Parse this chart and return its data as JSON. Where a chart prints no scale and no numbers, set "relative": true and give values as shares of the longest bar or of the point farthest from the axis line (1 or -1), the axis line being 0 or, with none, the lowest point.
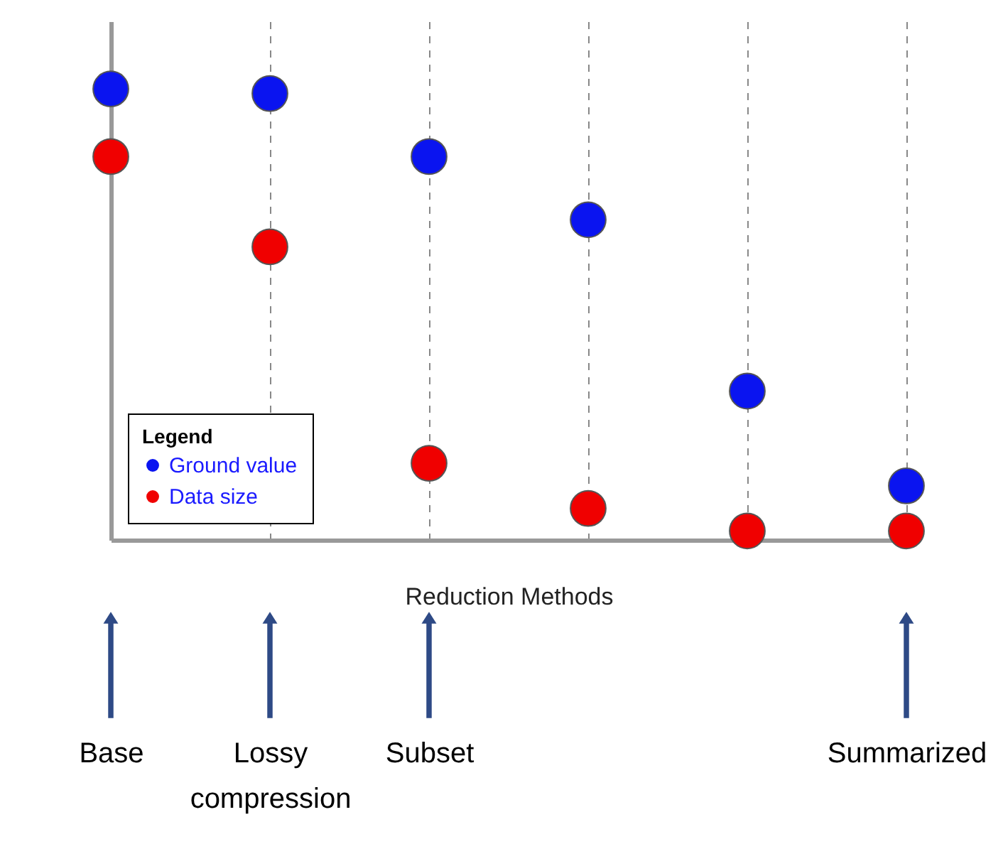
{
  "chart_data": {
    "type": "scatter",
    "relative": true,
    "xlabel": "Reduction Methods",
    "legend_title": "Legend",
    "legend": "bottom left",
    "grid": "x",
    "marker": "circle",
    "categories": [
      "Base",
      "Lossy compression",
      "Subset",
      null,
      null,
      "Summarized"
    ],
    "series": [
      {
        "name": "Ground value",
        "color": "#0a14f0",
        "values": [
          1,
          0.99,
          0.85,
          0.71,
          0.33,
          0.12
        ]
      },
      {
        "name": "Data size",
        "color": "#f00000",
        "values": [
          0.85,
          0.65,
          0.17,
          0.07,
          0.02,
          0.02
        ]
      }
    ]
  }
}
